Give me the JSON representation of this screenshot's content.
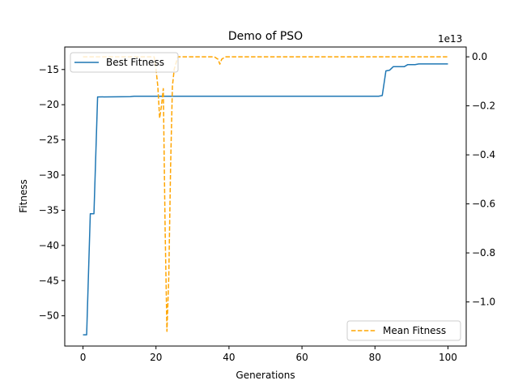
{
  "chart_data": {
    "type": "line",
    "title": "Demo of PSO",
    "xlabel": "Generations",
    "ylabel": "Fitness",
    "y2_offset_label": "1e13",
    "xlim": [
      -5,
      105
    ],
    "ylim": [
      -54.3,
      -11.8
    ],
    "y2lim": [
      -1.18,
      0.04
    ],
    "xticks": [
      0,
      20,
      40,
      60,
      80,
      100
    ],
    "yticks": [
      -50,
      -45,
      -40,
      -35,
      -30,
      -25,
      -20,
      -15
    ],
    "y2ticks": [
      0.0,
      -0.2,
      -0.4,
      -0.6,
      -0.8,
      -1.0
    ],
    "y2tick_labels": [
      "0.0",
      "−0.2",
      "−0.4",
      "−0.6",
      "−0.8",
      "−1.0"
    ],
    "grid": false,
    "series": [
      {
        "name": "Best Fitness",
        "axis": "left",
        "color": "#1f77b4",
        "style": "solid",
        "legend_position": "upper-left",
        "points": [
          [
            0,
            -52.7
          ],
          [
            1,
            -52.7
          ],
          [
            2,
            -35.5
          ],
          [
            3,
            -35.5
          ],
          [
            4,
            -18.9
          ],
          [
            13,
            -18.85
          ],
          [
            14,
            -18.8
          ],
          [
            81,
            -18.8
          ],
          [
            82,
            -18.7
          ],
          [
            83,
            -15.2
          ],
          [
            84,
            -15.1
          ],
          [
            85,
            -14.6
          ],
          [
            88,
            -14.6
          ],
          [
            89,
            -14.3
          ],
          [
            91,
            -14.3
          ],
          [
            92,
            -14.2
          ],
          [
            100,
            -14.2
          ]
        ]
      },
      {
        "name": "Mean Fitness",
        "axis": "right",
        "color": "#ffa500",
        "style": "dashed",
        "legend_position": "lower-right",
        "points": [
          [
            0,
            0.0
          ],
          [
            19.5,
            0.0
          ],
          [
            20,
            -0.05
          ],
          [
            20.5,
            -0.12
          ],
          [
            21,
            -0.25
          ],
          [
            21.5,
            -0.2
          ],
          [
            22,
            -0.13
          ],
          [
            22.5,
            -0.7
          ],
          [
            23,
            -1.12
          ],
          [
            23.5,
            -0.9
          ],
          [
            24,
            -0.45
          ],
          [
            24.5,
            -0.12
          ],
          [
            25,
            -0.05
          ],
          [
            26,
            0.0
          ],
          [
            36,
            0.0
          ],
          [
            37,
            -0.01
          ],
          [
            37.5,
            -0.03
          ],
          [
            38,
            -0.01
          ],
          [
            39,
            0.0
          ],
          [
            100,
            0.0
          ]
        ]
      }
    ]
  }
}
